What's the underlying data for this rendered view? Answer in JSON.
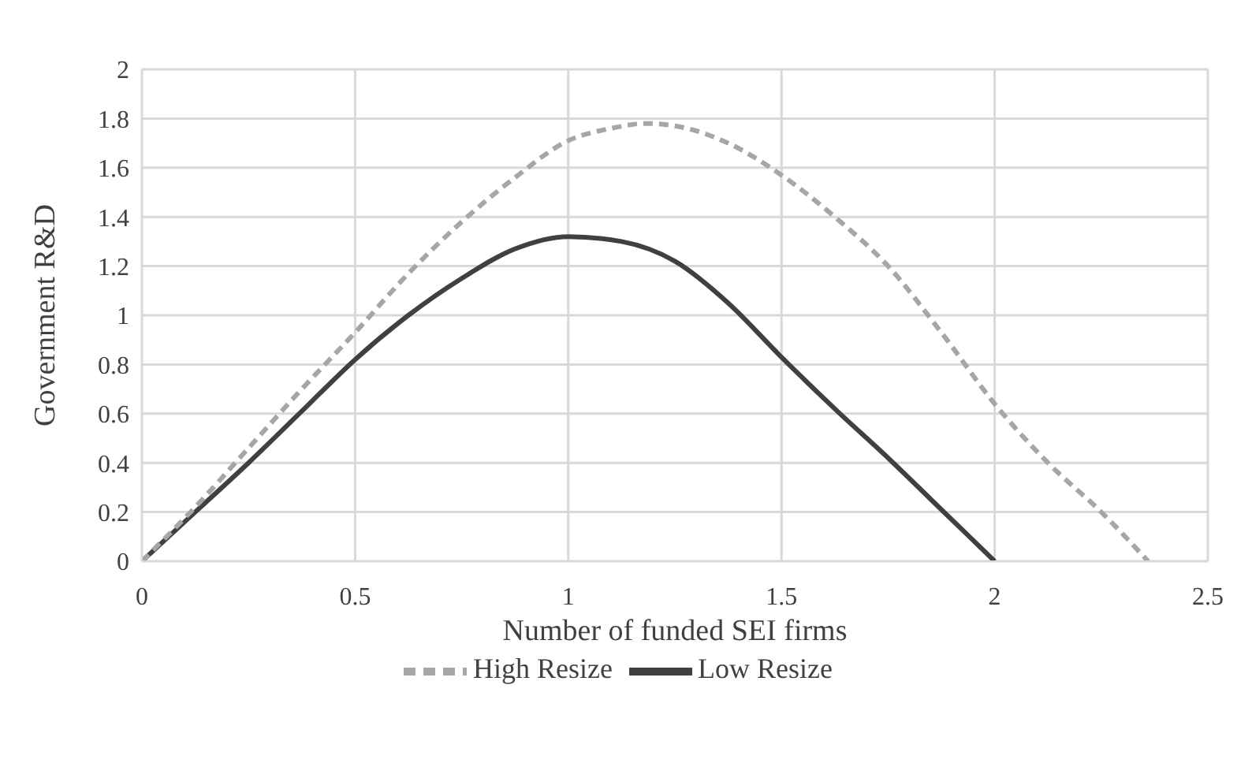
{
  "chart_data": {
    "type": "line",
    "xlabel": "Number of  funded SEI firms",
    "ylabel": "Government R&D",
    "xlim": [
      0,
      2.5
    ],
    "xticks": [
      0,
      0.5,
      1,
      1.5,
      2,
      2.5
    ],
    "ylim": [
      0,
      2
    ],
    "yticks": [
      0,
      0.2,
      0.4,
      0.6,
      0.8,
      1,
      1.2,
      1.4,
      1.6,
      1.8,
      2
    ],
    "grid": true,
    "legend": "bottom",
    "marker": "none",
    "series": [
      {
        "name": "Low Resize",
        "color": "#404040",
        "line_style": "solid",
        "x": [
          0,
          0.125,
          0.25,
          0.375,
          0.5,
          0.625,
          0.75,
          0.875,
          1,
          1.125,
          1.25,
          1.375,
          1.5,
          1.625,
          1.75,
          1.875,
          2
        ],
        "values": [
          0,
          0.2,
          0.4,
          0.61,
          0.82,
          1.0,
          1.15,
          1.27,
          1.32,
          1.3,
          1.22,
          1.05,
          0.83,
          0.62,
          0.42,
          0.21,
          0
        ]
      },
      {
        "name": "High Resize",
        "color": "#a6a6a6",
        "line_style": "dashed",
        "x": [
          0,
          0.125,
          0.25,
          0.375,
          0.5,
          0.625,
          0.75,
          0.875,
          1,
          1.1,
          1.18,
          1.25,
          1.375,
          1.5,
          1.625,
          1.75,
          1.875,
          2,
          2.125,
          2.25,
          2.36
        ],
        "values": [
          0,
          0.22,
          0.46,
          0.7,
          0.93,
          1.17,
          1.38,
          1.56,
          1.71,
          1.76,
          1.78,
          1.77,
          1.7,
          1.57,
          1.4,
          1.2,
          0.93,
          0.64,
          0.4,
          0.2,
          0
        ]
      }
    ]
  }
}
